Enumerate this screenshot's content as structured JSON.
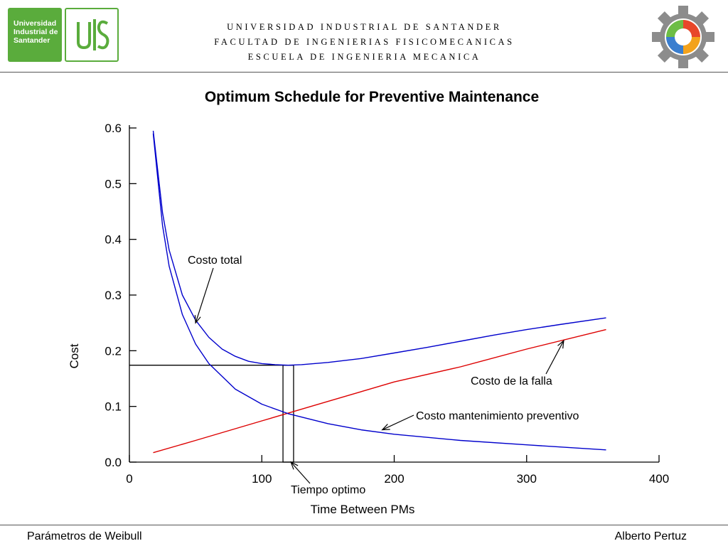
{
  "header": {
    "logo_text": [
      "Universidad",
      "Industrial de",
      "Santander"
    ],
    "logo_mark": "UIS",
    "lines": [
      "UNIVERSIDAD INDUSTRIAL DE SANTANDER",
      "FACULTAD DE INGENIERIAS FISICOMECANICAS",
      "ESCUELA DE INGENIERIA MECANICA"
    ]
  },
  "footer": {
    "left": "Parámetros de Weibull",
    "right": "Alberto Pertuz"
  },
  "chart_data": {
    "type": "line",
    "title": "Optimum Schedule for Preventive Maintenance",
    "xlabel": "Time Between PMs",
    "ylabel": "Cost",
    "xlim": [
      0,
      400
    ],
    "ylim": [
      0,
      0.6
    ],
    "x_ticks": [
      "0",
      "100",
      "200",
      "300",
      "400"
    ],
    "y_ticks": [
      "0.0",
      "0.1",
      "0.2",
      "0.3",
      "0.4",
      "0.5",
      "0.6"
    ],
    "grid": false,
    "colors": {
      "total": "#0000cc",
      "failure": "#dd0000",
      "preventive": "#0000cc",
      "annotation": "#000000"
    },
    "series": [
      {
        "name": "Costo total",
        "x": [
          18,
          25,
          30,
          40,
          50,
          60,
          70,
          80,
          90,
          100,
          110,
          120,
          130,
          150,
          175,
          200,
          225,
          250,
          275,
          300,
          325,
          360
        ],
        "values": [
          0.595,
          0.448,
          0.381,
          0.3,
          0.255,
          0.224,
          0.203,
          0.19,
          0.181,
          0.177,
          0.175,
          0.174,
          0.175,
          0.179,
          0.186,
          0.196,
          0.206,
          0.217,
          0.228,
          0.238,
          0.247,
          0.259
        ]
      },
      {
        "name": "Costo de la falla",
        "x": [
          18,
          50,
          100,
          150,
          200,
          250,
          300,
          360
        ],
        "values": [
          0.017,
          0.039,
          0.074,
          0.109,
          0.144,
          0.171,
          0.203,
          0.238
        ]
      },
      {
        "name": "Costo mantenimiento preventivo",
        "x": [
          18,
          25,
          30,
          40,
          50,
          60,
          80,
          100,
          120,
          150,
          175,
          200,
          250,
          300,
          360
        ],
        "values": [
          0.59,
          0.425,
          0.352,
          0.265,
          0.212,
          0.177,
          0.131,
          0.104,
          0.087,
          0.069,
          0.058,
          0.05,
          0.039,
          0.031,
          0.022
        ]
      }
    ],
    "optimum": {
      "x": 122,
      "y": 0.174,
      "box_x": [
        116,
        124
      ]
    },
    "annotations": [
      {
        "text": "Costo total",
        "target_x": 50,
        "target_y": 0.25
      },
      {
        "text": "Costo de la falla",
        "target_x": 328,
        "target_y": 0.218
      },
      {
        "text": "Costo mantenimiento preventivo",
        "target_x": 191,
        "target_y": 0.058
      },
      {
        "text": "Tiempo optimo",
        "target_x": 122,
        "target_y": 0.0
      }
    ]
  }
}
